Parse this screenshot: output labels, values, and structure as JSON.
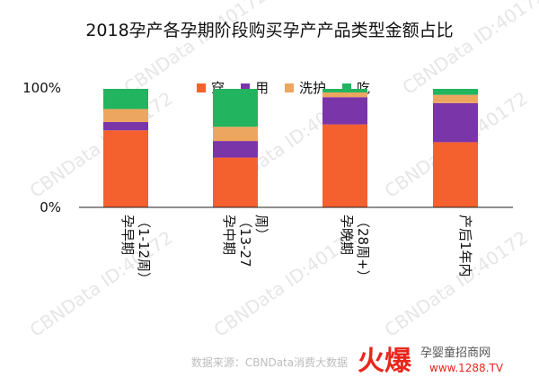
{
  "colors": {
    "穿": "#f4602e",
    "用": "#7a35a8",
    "洗护": "#eda660",
    "吃": "#22b45e",
    "axis": "#222222"
  },
  "chart_data": {
    "type": "bar",
    "stacked": true,
    "title": "2018孕产各孕期阶段购买孕产产品类型金额占比",
    "y_ticks": [
      "0%",
      "100%"
    ],
    "ylim": [
      0,
      100
    ],
    "legend_position": "top",
    "categories": [
      [
        "孕早期",
        "（1-12周）"
      ],
      [
        "孕中期",
        "（13-27",
        "周）"
      ],
      [
        "孕晚期",
        "（28周+）"
      ],
      [
        "产后1年内"
      ]
    ],
    "series": [
      {
        "name": "穿",
        "values": [
          65,
          42,
          70,
          55
        ]
      },
      {
        "name": "用",
        "values": [
          7,
          14,
          23,
          33
        ]
      },
      {
        "name": "洗护",
        "values": [
          11,
          12,
          4,
          7
        ]
      },
      {
        "name": "吃",
        "values": [
          17,
          32,
          3,
          5
        ]
      }
    ]
  },
  "watermark": "CBNData ID:40172",
  "source_text": "数据来源：CBNData消费大数据",
  "logo": {
    "brand": "火爆",
    "subtitle": "孕婴童招商网",
    "url": "www.1288.TV"
  }
}
